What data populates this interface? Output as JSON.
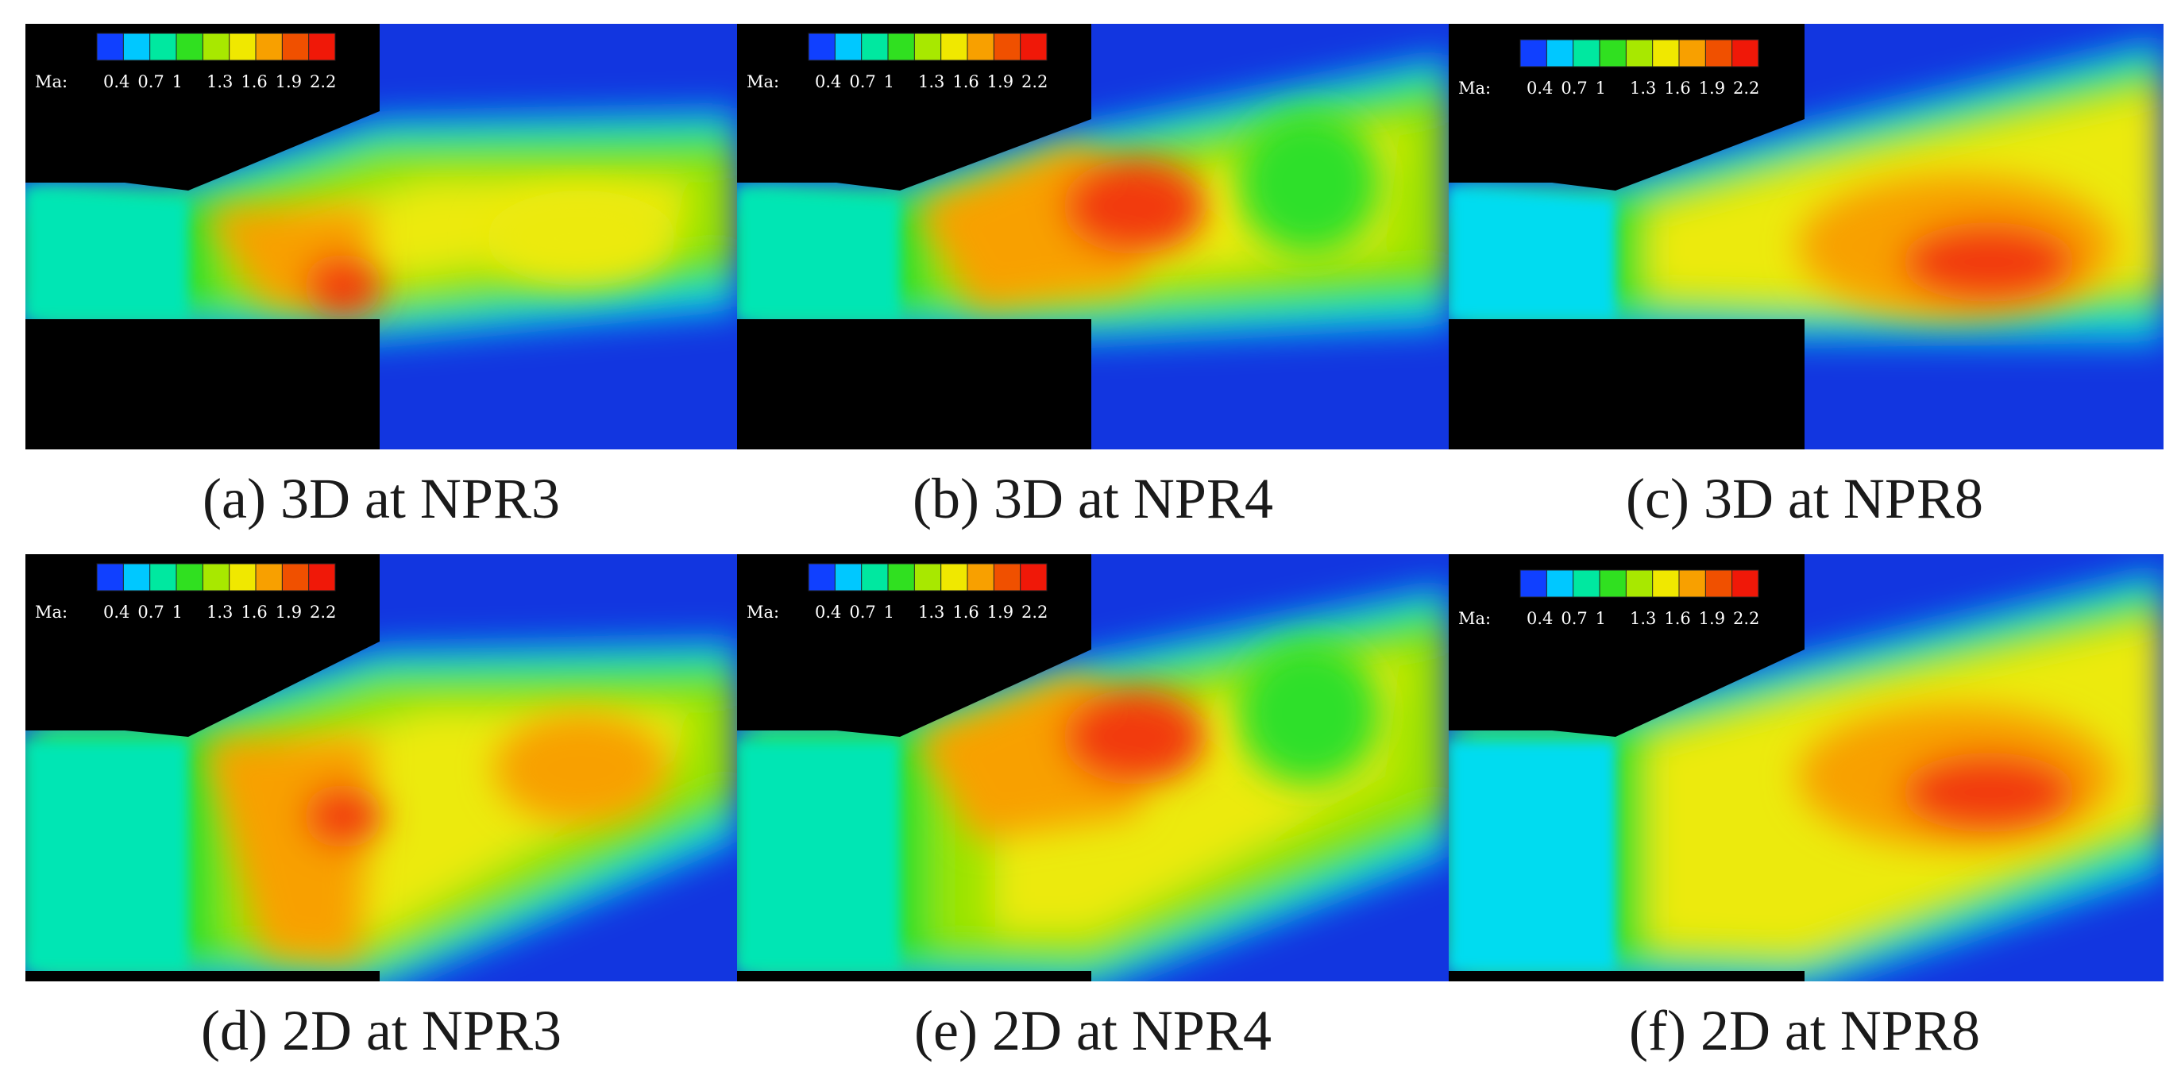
{
  "colorbar": {
    "label": "Ma:",
    "ticks": [
      "0.4",
      "0.7",
      "1",
      "1.3",
      "1.6",
      "1.9",
      "2.2"
    ],
    "colors": [
      "#1040ff",
      "#00c8ff",
      "#00e8a0",
      "#30e020",
      "#a8e800",
      "#f0e800",
      "#f8a000",
      "#f05000",
      "#f01808"
    ]
  },
  "panels": [
    {
      "caption": "(a) 3D at NPR3",
      "flow": "3d-npr3"
    },
    {
      "caption": "(b) 3D at NPR4",
      "flow": "3d-npr4"
    },
    {
      "caption": "(c) 3D at NPR8",
      "flow": "3d-npr8"
    },
    {
      "caption": "(d) 2D at NPR3",
      "flow": "2d-npr3"
    },
    {
      "caption": "(e) 2D at NPR4",
      "flow": "2d-npr4"
    },
    {
      "caption": "(f) 2D at NPR8",
      "flow": "2d-npr8"
    }
  ]
}
